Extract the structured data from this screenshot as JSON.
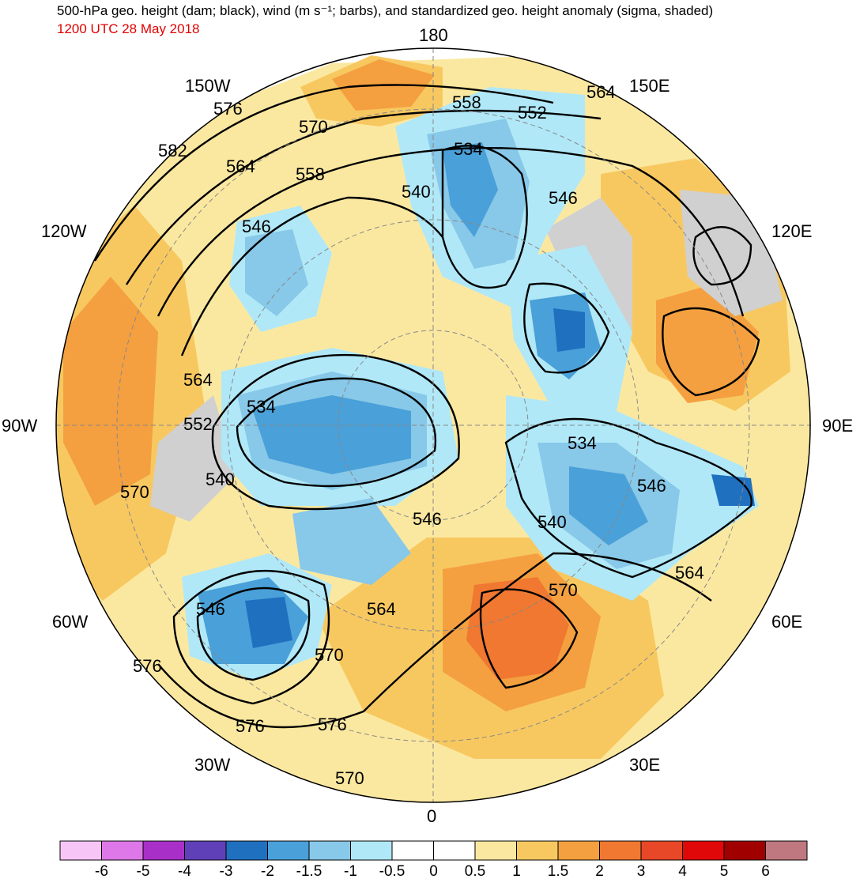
{
  "header": {
    "title": "500-hPa geo. height (dam; black), wind (m s⁻¹; barbs), and standardized geo. height anomaly (sigma, shaded)",
    "valid_time": "1200 UTC 28 May 2018"
  },
  "map": {
    "projection": "north-polar-stereographic",
    "longitude_labels": {
      "top": "180",
      "bottom": "0",
      "left": "90W",
      "right": "90E",
      "upper_left_1": "150W",
      "upper_left_2": "120W",
      "lower_left_1": "60W",
      "lower_left_2": "30W",
      "upper_right_1": "150E",
      "upper_right_2": "120E",
      "lower_right_1": "60E",
      "lower_right_2": "30E"
    },
    "contour_labels": [
      "576",
      "570",
      "558",
      "552",
      "564",
      "582",
      "564",
      "558",
      "534",
      "540",
      "546",
      "546",
      "564",
      "534",
      "552",
      "540",
      "570",
      "546",
      "534",
      "546",
      "540",
      "564",
      "570",
      "564",
      "546",
      "576",
      "570",
      "576",
      "576",
      "570"
    ]
  },
  "colorbar": {
    "colors": [
      "#f7c6f7",
      "#de78e8",
      "#a830c8",
      "#6040b8",
      "#2070c0",
      "#4aa0d8",
      "#88c8e8",
      "#b0e8f8",
      "#ffffff",
      "#ffffff",
      "#fbe8a0",
      "#f8c860",
      "#f4a040",
      "#f07830",
      "#e84828",
      "#e00808",
      "#a00000",
      "#c07880"
    ],
    "ticks": [
      "-6",
      "-5",
      "-4",
      "-3",
      "-2",
      "-1.5",
      "-1",
      "-0.5",
      "0",
      "0.5",
      "1",
      "1.5",
      "2",
      "3",
      "4",
      "5",
      "6"
    ]
  }
}
